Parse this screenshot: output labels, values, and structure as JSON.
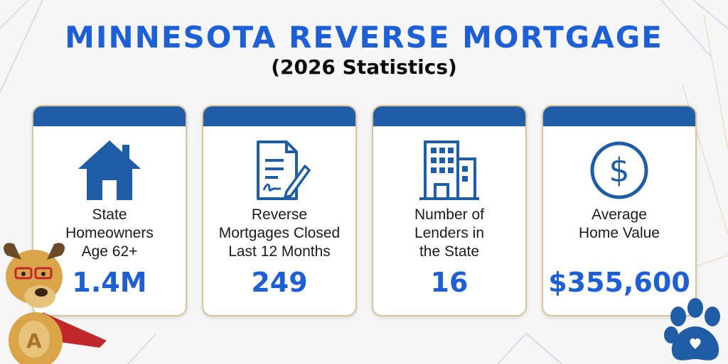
{
  "title": "MINNESOTA REVERSE MORTGAGE",
  "subtitle": "(2026 Statistics)",
  "colors": {
    "accent": "#1d5fd6",
    "card_bar": "#1f5ea6",
    "card_border": "#d8c39a"
  },
  "cards": [
    {
      "icon": "house-icon",
      "label": "State\nHomeowners\nAge 62+",
      "value": "1.4M"
    },
    {
      "icon": "signed-document-icon",
      "label": "Reverse\nMortgages Closed\nLast 12 Months",
      "value": "249"
    },
    {
      "icon": "office-building-icon",
      "label": "Number of\nLenders in\nthe State",
      "value": "16"
    },
    {
      "icon": "dollar-circle-icon",
      "label": "Average\nHome Value",
      "value": "$355,600"
    }
  ]
}
